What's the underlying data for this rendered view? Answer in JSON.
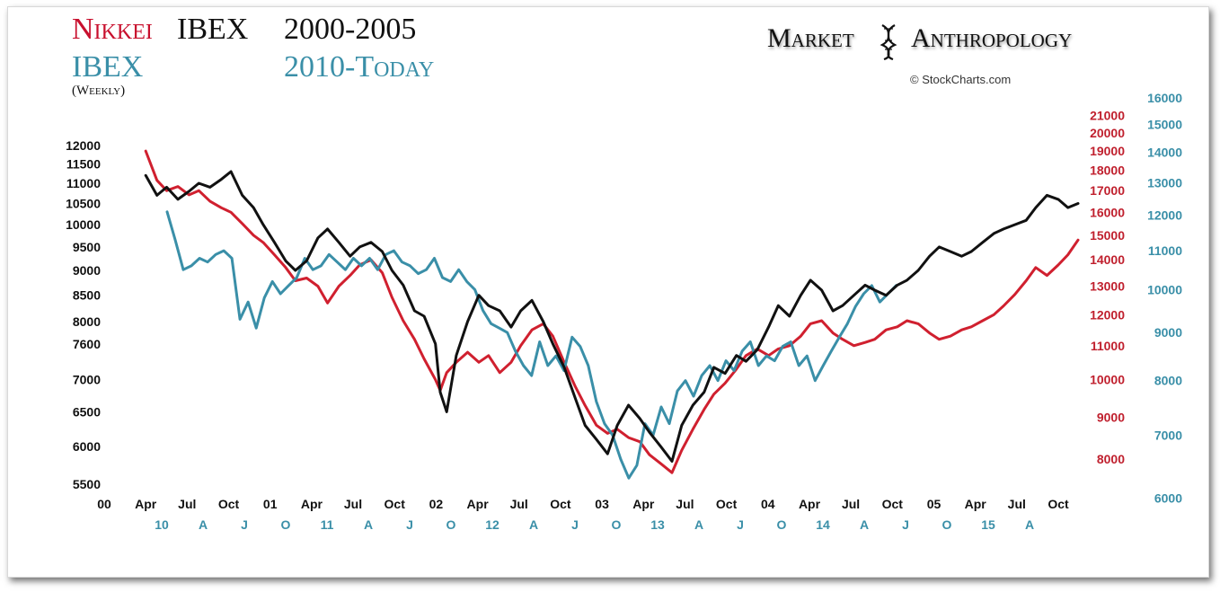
{
  "header": {
    "nikkei_label": "Nikkei",
    "ibex_label_1": "IBEX",
    "years_1": "2000-2005",
    "ibex_label_2": "IBEX",
    "years_2": "2010-Today",
    "frequency": "(Weekly)",
    "brand_left": "Market",
    "brand_right": "Anthropology",
    "copyright": "© StockCharts.com"
  },
  "colors": {
    "ibex_2000": "#111111",
    "nikkei": "#d0202f",
    "ibex_2010": "#3a8fa8"
  },
  "chart_data": {
    "type": "line",
    "title": "Nikkei IBEX 2000-2005 / IBEX 2010-Today (Weekly)",
    "x_axis_top": {
      "series": "2000-2005",
      "ticks": [
        "00",
        "Apr",
        "Jul",
        "Oct",
        "01",
        "Apr",
        "Jul",
        "Oct",
        "02",
        "Apr",
        "Jul",
        "Oct",
        "03",
        "Apr",
        "Jul",
        "Oct",
        "04",
        "Apr",
        "Jul",
        "Oct",
        "05",
        "Apr",
        "Jul",
        "Oct"
      ]
    },
    "x_axis_bottom": {
      "series": "2010-Today",
      "ticks": [
        "10",
        "A",
        "J",
        "O",
        "11",
        "A",
        "J",
        "O",
        "12",
        "A",
        "J",
        "O",
        "13",
        "A",
        "J",
        "O",
        "14",
        "A",
        "J",
        "O",
        "15",
        "A"
      ]
    },
    "y_axis_left": {
      "series": "IBEX 2000-2005",
      "scale": "log",
      "range": [
        5400,
        12300
      ],
      "ticks": [
        12000,
        11500,
        11000,
        10500,
        10000,
        9500,
        9000,
        8500,
        8000,
        7600,
        7000,
        6500,
        6000,
        5500
      ]
    },
    "y_axis_right_inner": {
      "series": "Nikkei 2000-2005",
      "scale": "log",
      "range": [
        7400,
        22000
      ],
      "ticks": [
        21000,
        20000,
        19000,
        18000,
        17000,
        16000,
        15000,
        14000,
        13000,
        12000,
        11000,
        10000,
        9000,
        8000
      ]
    },
    "y_axis_right_outer": {
      "series": "IBEX 2010-Today",
      "scale": "log",
      "range": [
        5900,
        16500
      ],
      "ticks": [
        16000,
        15000,
        14000,
        13000,
        12000,
        11000,
        10000,
        9000,
        8000,
        7000,
        6000
      ]
    },
    "series": [
      {
        "name": "IBEX 2000-2005",
        "axis": "left",
        "points": [
          [
            0.0,
            11200
          ],
          [
            0.07,
            10700
          ],
          [
            0.13,
            10900
          ],
          [
            0.2,
            10600
          ],
          [
            0.27,
            10800
          ],
          [
            0.33,
            11000
          ],
          [
            0.4,
            10900
          ],
          [
            0.47,
            11100
          ],
          [
            0.53,
            11300
          ],
          [
            0.6,
            10700
          ],
          [
            0.67,
            10400
          ],
          [
            0.73,
            10000
          ],
          [
            0.8,
            9600
          ],
          [
            0.87,
            9200
          ],
          [
            0.93,
            9000
          ],
          [
            1.0,
            9200
          ],
          [
            1.07,
            9700
          ],
          [
            1.13,
            9900
          ],
          [
            1.2,
            9600
          ],
          [
            1.27,
            9300
          ],
          [
            1.33,
            9500
          ],
          [
            1.4,
            9600
          ],
          [
            1.47,
            9400
          ],
          [
            1.53,
            9000
          ],
          [
            1.6,
            8700
          ],
          [
            1.67,
            8200
          ],
          [
            1.73,
            8100
          ],
          [
            1.8,
            7600
          ],
          [
            1.83,
            6800
          ],
          [
            1.87,
            6500
          ],
          [
            1.93,
            7400
          ],
          [
            2.0,
            8000
          ],
          [
            2.07,
            8500
          ],
          [
            2.13,
            8300
          ],
          [
            2.2,
            8200
          ],
          [
            2.27,
            7900
          ],
          [
            2.33,
            8200
          ],
          [
            2.4,
            8400
          ],
          [
            2.47,
            8000
          ],
          [
            2.53,
            7600
          ],
          [
            2.6,
            7200
          ],
          [
            2.67,
            6700
          ],
          [
            2.73,
            6300
          ],
          [
            2.8,
            6100
          ],
          [
            2.87,
            5900
          ],
          [
            2.93,
            6300
          ],
          [
            3.0,
            6600
          ],
          [
            3.07,
            6400
          ],
          [
            3.13,
            6200
          ],
          [
            3.2,
            6000
          ],
          [
            3.27,
            5800
          ],
          [
            3.33,
            6300
          ],
          [
            3.4,
            6600
          ],
          [
            3.47,
            6800
          ],
          [
            3.53,
            7200
          ],
          [
            3.6,
            7100
          ],
          [
            3.67,
            7400
          ],
          [
            3.73,
            7300
          ],
          [
            3.8,
            7500
          ],
          [
            3.87,
            7900
          ],
          [
            3.93,
            8300
          ],
          [
            4.0,
            8100
          ],
          [
            4.07,
            8500
          ],
          [
            4.13,
            8800
          ],
          [
            4.2,
            8600
          ],
          [
            4.27,
            8200
          ],
          [
            4.33,
            8300
          ],
          [
            4.4,
            8500
          ],
          [
            4.47,
            8700
          ],
          [
            4.53,
            8600
          ],
          [
            4.6,
            8500
          ],
          [
            4.67,
            8700
          ],
          [
            4.73,
            8800
          ],
          [
            4.8,
            9000
          ],
          [
            4.87,
            9300
          ],
          [
            4.93,
            9500
          ],
          [
            5.0,
            9400
          ],
          [
            5.07,
            9300
          ],
          [
            5.13,
            9400
          ],
          [
            5.2,
            9600
          ],
          [
            5.27,
            9800
          ],
          [
            5.33,
            9900
          ],
          [
            5.4,
            10000
          ],
          [
            5.47,
            10100
          ],
          [
            5.53,
            10400
          ],
          [
            5.6,
            10700
          ],
          [
            5.67,
            10600
          ],
          [
            5.73,
            10400
          ],
          [
            5.8,
            10500
          ]
        ]
      },
      {
        "name": "Nikkei 2000-2005",
        "axis": "right_inner",
        "points": [
          [
            0.0,
            19000
          ],
          [
            0.07,
            17500
          ],
          [
            0.13,
            17000
          ],
          [
            0.2,
            17200
          ],
          [
            0.27,
            16800
          ],
          [
            0.33,
            17000
          ],
          [
            0.4,
            16500
          ],
          [
            0.47,
            16200
          ],
          [
            0.53,
            16000
          ],
          [
            0.6,
            15500
          ],
          [
            0.67,
            15000
          ],
          [
            0.73,
            14700
          ],
          [
            0.8,
            14200
          ],
          [
            0.87,
            13700
          ],
          [
            0.93,
            13200
          ],
          [
            1.0,
            13300
          ],
          [
            1.07,
            13000
          ],
          [
            1.13,
            12400
          ],
          [
            1.2,
            13000
          ],
          [
            1.27,
            13400
          ],
          [
            1.33,
            13800
          ],
          [
            1.4,
            14000
          ],
          [
            1.47,
            13500
          ],
          [
            1.53,
            12600
          ],
          [
            1.6,
            11800
          ],
          [
            1.67,
            11200
          ],
          [
            1.73,
            10600
          ],
          [
            1.8,
            10000
          ],
          [
            1.83,
            9700
          ],
          [
            1.87,
            10200
          ],
          [
            1.93,
            10500
          ],
          [
            2.0,
            10800
          ],
          [
            2.07,
            10500
          ],
          [
            2.13,
            10700
          ],
          [
            2.2,
            10200
          ],
          [
            2.27,
            10500
          ],
          [
            2.33,
            11000
          ],
          [
            2.4,
            11500
          ],
          [
            2.47,
            11700
          ],
          [
            2.53,
            11300
          ],
          [
            2.6,
            10500
          ],
          [
            2.67,
            9800
          ],
          [
            2.73,
            9300
          ],
          [
            2.8,
            8800
          ],
          [
            2.87,
            8600
          ],
          [
            2.93,
            8700
          ],
          [
            3.0,
            8500
          ],
          [
            3.07,
            8400
          ],
          [
            3.13,
            8100
          ],
          [
            3.2,
            7900
          ],
          [
            3.27,
            7700
          ],
          [
            3.33,
            8200
          ],
          [
            3.4,
            8700
          ],
          [
            3.47,
            9200
          ],
          [
            3.53,
            9600
          ],
          [
            3.6,
            9900
          ],
          [
            3.67,
            10300
          ],
          [
            3.73,
            10700
          ],
          [
            3.8,
            10900
          ],
          [
            3.87,
            10700
          ],
          [
            3.93,
            10900
          ],
          [
            4.0,
            11000
          ],
          [
            4.07,
            11300
          ],
          [
            4.13,
            11700
          ],
          [
            4.2,
            11800
          ],
          [
            4.27,
            11400
          ],
          [
            4.33,
            11200
          ],
          [
            4.4,
            11000
          ],
          [
            4.47,
            11100
          ],
          [
            4.53,
            11200
          ],
          [
            4.6,
            11500
          ],
          [
            4.67,
            11600
          ],
          [
            4.73,
            11800
          ],
          [
            4.8,
            11700
          ],
          [
            4.87,
            11400
          ],
          [
            4.93,
            11200
          ],
          [
            5.0,
            11300
          ],
          [
            5.07,
            11500
          ],
          [
            5.13,
            11600
          ],
          [
            5.2,
            11800
          ],
          [
            5.27,
            12000
          ],
          [
            5.33,
            12300
          ],
          [
            5.4,
            12700
          ],
          [
            5.47,
            13200
          ],
          [
            5.53,
            13700
          ],
          [
            5.6,
            13400
          ],
          [
            5.67,
            13800
          ],
          [
            5.73,
            14200
          ],
          [
            5.8,
            14800
          ]
        ]
      },
      {
        "name": "IBEX 2010-Today",
        "axis": "right_outer",
        "points": [
          [
            0.0,
            12100
          ],
          [
            0.05,
            11300
          ],
          [
            0.1,
            10500
          ],
          [
            0.15,
            10600
          ],
          [
            0.2,
            10800
          ],
          [
            0.25,
            10700
          ],
          [
            0.3,
            10900
          ],
          [
            0.35,
            11000
          ],
          [
            0.4,
            10800
          ],
          [
            0.45,
            9300
          ],
          [
            0.5,
            9700
          ],
          [
            0.55,
            9100
          ],
          [
            0.6,
            9800
          ],
          [
            0.65,
            10200
          ],
          [
            0.7,
            9900
          ],
          [
            0.75,
            10100
          ],
          [
            0.8,
            10300
          ],
          [
            0.85,
            10800
          ],
          [
            0.9,
            10500
          ],
          [
            0.95,
            10600
          ],
          [
            1.0,
            10900
          ],
          [
            1.05,
            10700
          ],
          [
            1.1,
            10500
          ],
          [
            1.15,
            10800
          ],
          [
            1.2,
            10600
          ],
          [
            1.25,
            10800
          ],
          [
            1.3,
            10500
          ],
          [
            1.35,
            10900
          ],
          [
            1.4,
            11000
          ],
          [
            1.45,
            10700
          ],
          [
            1.5,
            10600
          ],
          [
            1.55,
            10400
          ],
          [
            1.6,
            10500
          ],
          [
            1.65,
            10800
          ],
          [
            1.7,
            10300
          ],
          [
            1.75,
            10200
          ],
          [
            1.8,
            10500
          ],
          [
            1.85,
            10200
          ],
          [
            1.9,
            10000
          ],
          [
            1.95,
            9500
          ],
          [
            2.0,
            9200
          ],
          [
            2.05,
            9100
          ],
          [
            2.1,
            9000
          ],
          [
            2.15,
            8600
          ],
          [
            2.2,
            8300
          ],
          [
            2.25,
            8100
          ],
          [
            2.3,
            8800
          ],
          [
            2.35,
            8300
          ],
          [
            2.4,
            8500
          ],
          [
            2.45,
            8200
          ],
          [
            2.5,
            8900
          ],
          [
            2.55,
            8700
          ],
          [
            2.6,
            8300
          ],
          [
            2.65,
            7600
          ],
          [
            2.7,
            7200
          ],
          [
            2.75,
            7000
          ],
          [
            2.8,
            6600
          ],
          [
            2.85,
            6300
          ],
          [
            2.9,
            6500
          ],
          [
            2.95,
            7200
          ],
          [
            3.0,
            7000
          ],
          [
            3.05,
            7500
          ],
          [
            3.1,
            7200
          ],
          [
            3.15,
            7800
          ],
          [
            3.2,
            8000
          ],
          [
            3.25,
            7700
          ],
          [
            3.3,
            8100
          ],
          [
            3.35,
            8300
          ],
          [
            3.4,
            8000
          ],
          [
            3.45,
            8400
          ],
          [
            3.5,
            8200
          ],
          [
            3.55,
            8600
          ],
          [
            3.6,
            8800
          ],
          [
            3.65,
            8300
          ],
          [
            3.7,
            8500
          ],
          [
            3.75,
            8400
          ],
          [
            3.8,
            8700
          ],
          [
            3.85,
            8800
          ],
          [
            3.9,
            8300
          ],
          [
            3.95,
            8500
          ],
          [
            4.0,
            8000
          ],
          [
            4.05,
            8300
          ],
          [
            4.1,
            8600
          ],
          [
            4.15,
            8900
          ],
          [
            4.2,
            9200
          ],
          [
            4.25,
            9600
          ],
          [
            4.3,
            9900
          ],
          [
            4.35,
            10100
          ],
          [
            4.4,
            9700
          ],
          [
            4.45,
            9900
          ],
          [
            4.5,
            10100
          ]
        ]
      }
    ]
  }
}
